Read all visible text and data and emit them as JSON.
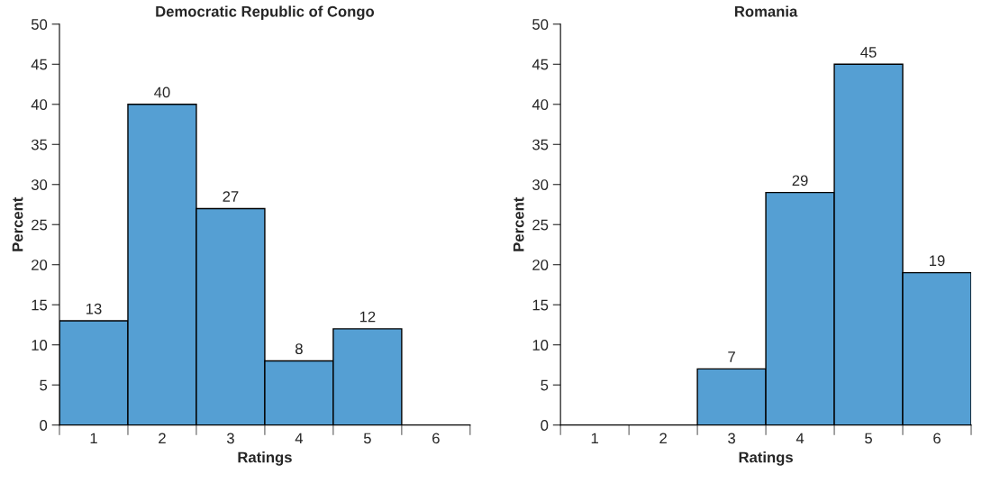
{
  "chart_data": [
    {
      "type": "bar",
      "title": "Democratic Republic of Congo",
      "xlabel": "Ratings",
      "ylabel": "Percent",
      "categories": [
        "1",
        "2",
        "3",
        "4",
        "5",
        "6"
      ],
      "color": "#559fd3",
      "values": [
        13,
        40,
        27,
        8,
        12,
        null
      ],
      "data_labels": true,
      "ylim": [
        0,
        50
      ],
      "yticks": [
        0,
        5,
        10,
        15,
        20,
        25,
        30,
        35,
        40,
        45,
        50
      ],
      "grid": false,
      "legend": false
    },
    {
      "type": "bar",
      "title": "Romania",
      "xlabel": "Ratings",
      "ylabel": "Percent",
      "categories": [
        "1",
        "2",
        "3",
        "4",
        "5",
        "6"
      ],
      "color": "#559fd3",
      "values": [
        null,
        null,
        7,
        29,
        45,
        19
      ],
      "data_labels": true,
      "ylim": [
        0,
        50
      ],
      "yticks": [
        0,
        5,
        10,
        15,
        20,
        25,
        30,
        35,
        40,
        45,
        50
      ],
      "grid": false,
      "legend": false
    }
  ]
}
